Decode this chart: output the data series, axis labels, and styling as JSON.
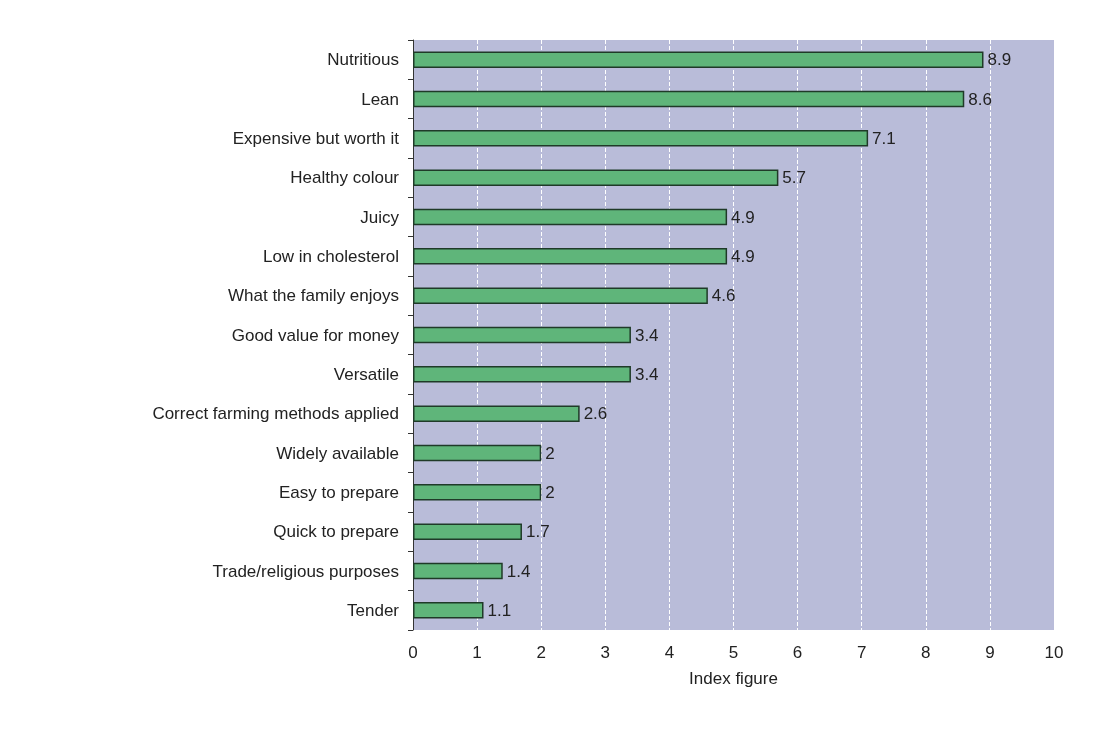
{
  "chart_data": {
    "type": "bar",
    "orientation": "horizontal",
    "xlabel": "Index figure",
    "categories": [
      "Nutritious",
      "Lean",
      "Expensive but worth it",
      "Healthy colour",
      "Juicy",
      "Low in cholesterol",
      "What the family enjoys",
      "Good value for money",
      "Versatile",
      "Correct farming methods applied",
      "Widely available",
      "Easy to prepare",
      "Quick to prepare",
      "Trade/religious purposes",
      "Tender"
    ],
    "values": [
      8.9,
      8.6,
      7.1,
      5.7,
      4.9,
      4.9,
      4.6,
      3.4,
      3.4,
      2.6,
      2,
      2,
      1.7,
      1.4,
      1.1
    ],
    "color": "#5fb57a",
    "xlim": [
      0,
      10
    ],
    "xticks": [
      0,
      1,
      2,
      3,
      4,
      5,
      6,
      7,
      8,
      9,
      10
    ],
    "grid": "x",
    "data_labels": true
  }
}
